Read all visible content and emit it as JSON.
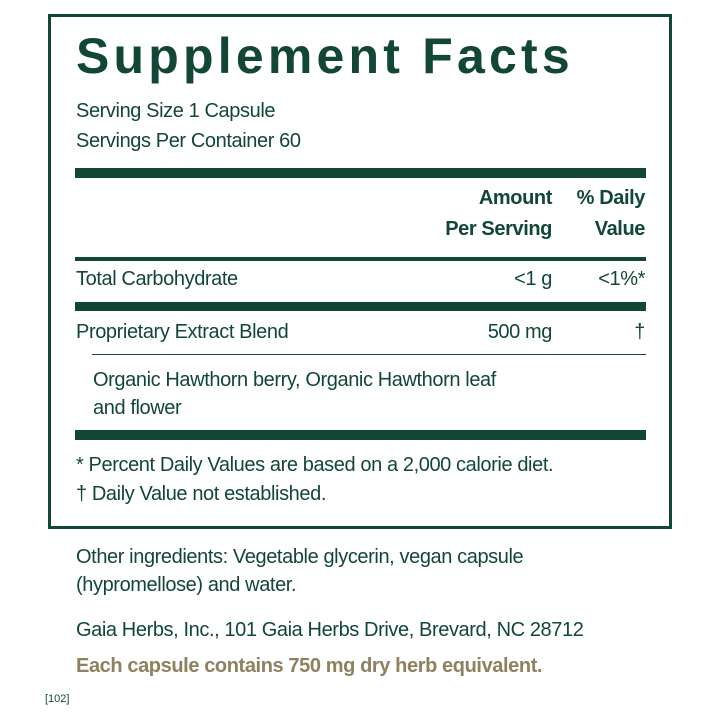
{
  "title": "Supplement Facts",
  "serving_size": "Serving Size 1 Capsule",
  "servings_per_container": "Servings Per Container 60",
  "headers": {
    "amount_line1": "Amount",
    "amount_line2": "Per Serving",
    "dv_line1": "% Daily",
    "dv_line2": "Value"
  },
  "rows": [
    {
      "name": "Total Carbohydrate",
      "amount": "<1 g",
      "dv": "<1%*"
    },
    {
      "name": "Proprietary Extract Blend",
      "amount": "500 mg",
      "dv": "†"
    }
  ],
  "blend_ingredients_line1": "Organic Hawthorn berry, Organic Hawthorn leaf",
  "blend_ingredients_line2": "and flower",
  "footnote_1": "*  Percent Daily Values are based on a 2,000 calorie diet.",
  "footnote_2": "† Daily Value not established.",
  "other_ingredients_line1": "Other ingredients: Vegetable glycerin, vegan capsule",
  "other_ingredients_line2": "(hypromellose) and water.",
  "manufacturer": "Gaia Herbs, Inc., 101 Gaia Herbs Drive, Brevard, NC 28712",
  "equivalent": "Each capsule contains 750 mg dry herb equivalent.",
  "code": "[102]",
  "colors": {
    "green": "#124734",
    "gold": "#8f8060"
  }
}
